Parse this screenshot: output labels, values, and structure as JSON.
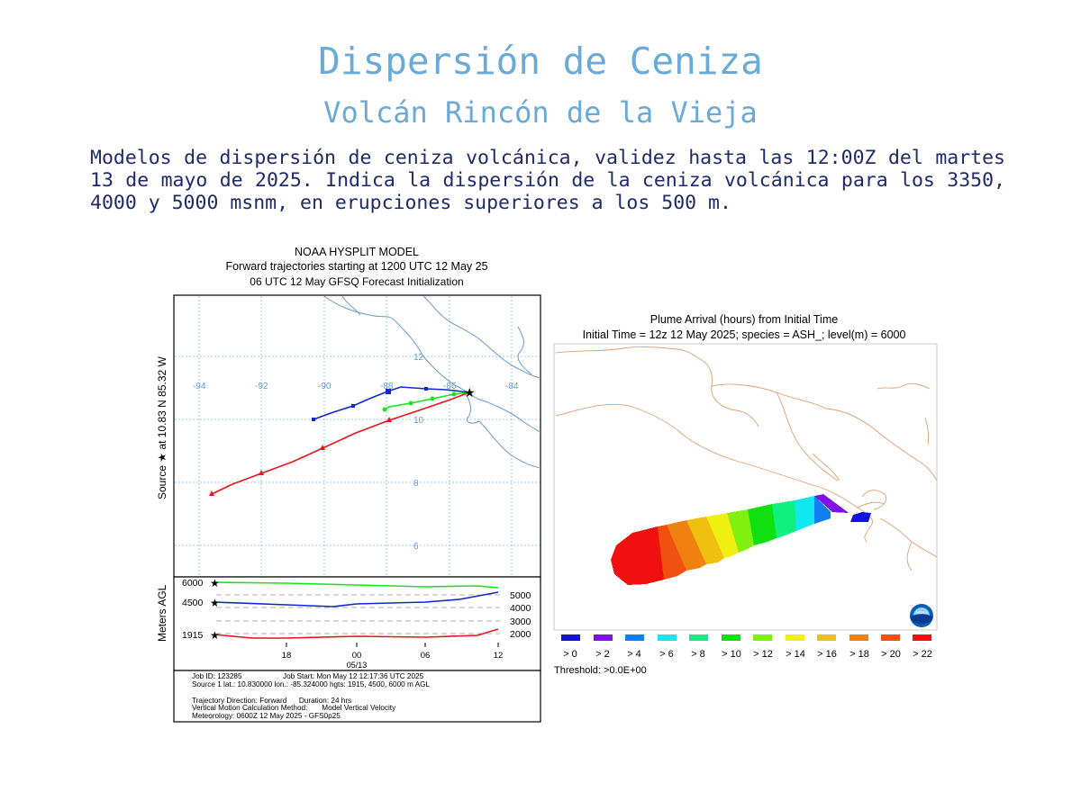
{
  "header": {
    "title": "Dispersión de Ceniza",
    "subtitle": "Volcán Rincón de la Vieja"
  },
  "description": "Modelos de dispersión de ceniza volcánica, validez hasta las 12:00Z del martes 13 de mayo de 2025. Indica la dispersión de la ceniza volcánica para los 3350, 4000 y 5000 msnm, en erupciones superiores a los 500 m.",
  "hysplit": {
    "title_line1": "NOAA HYSPLIT MODEL",
    "title_line2": "Forward trajectories starting at 1200 UTC 12 May 25",
    "title_line3": "06 UTC 12 May    GFSQ  Forecast Initialization",
    "side_label_top": "Source ★ at 10.83 N 85.32 W",
    "side_label_bottom": "Meters AGL",
    "lon_labels": [
      "-94",
      "-92",
      "-90",
      "-88",
      "-86",
      "-84"
    ],
    "lat_labels": [
      "12",
      "10",
      "8",
      "6"
    ],
    "height_left_labels": [
      "6000",
      "4500",
      "1915"
    ],
    "height_right_labels": [
      "5000",
      "4000",
      "3000",
      "2000"
    ],
    "time_labels": [
      "18",
      "00",
      "06",
      "12"
    ],
    "date_label": "05/13",
    "info_lines": [
      "Job ID: 123285                    Job Start: Mon May 12 12:17:36 UTC 2025",
      "Source 1 lat.: 10.830000  lon.: -85.324000  hgts: 1915, 4500, 6000 m AGL",
      "Trajectory Direction: Forward      Duration: 24 hrs",
      "Vertical Motion Calculation Method:       Model Vertical Velocity",
      "Meteorology: 0600Z 12 May 2025 - GFS0p25"
    ],
    "series_colors": {
      "low": "#e8141c",
      "mid": "#1028d0",
      "high": "#18e418"
    }
  },
  "plume": {
    "title_line1": "Plume Arrival (hours) from Initial Time",
    "title_line2": "Initial Time = 12z 12 May 2025;  species = ASH_;  level(m) =  6000",
    "legend": [
      {
        "label": "> 0",
        "color": "#1010e0"
      },
      {
        "label": "> 2",
        "color": "#8010e8"
      },
      {
        "label": "> 4",
        "color": "#1080f0"
      },
      {
        "label": "> 6",
        "color": "#10e8f0"
      },
      {
        "label": "> 8",
        "color": "#10f080"
      },
      {
        "label": "> 10",
        "color": "#10e010"
      },
      {
        "label": "> 12",
        "color": "#80f010"
      },
      {
        "label": "> 14",
        "color": "#f0f010"
      },
      {
        "label": "> 16",
        "color": "#f0c010"
      },
      {
        "label": "> 18",
        "color": "#f08010"
      },
      {
        "label": "> 20",
        "color": "#f05010"
      },
      {
        "label": "> 22",
        "color": "#f01010"
      }
    ],
    "threshold": "Threshold: >0.0E+00",
    "logo_text": "NOAA"
  }
}
